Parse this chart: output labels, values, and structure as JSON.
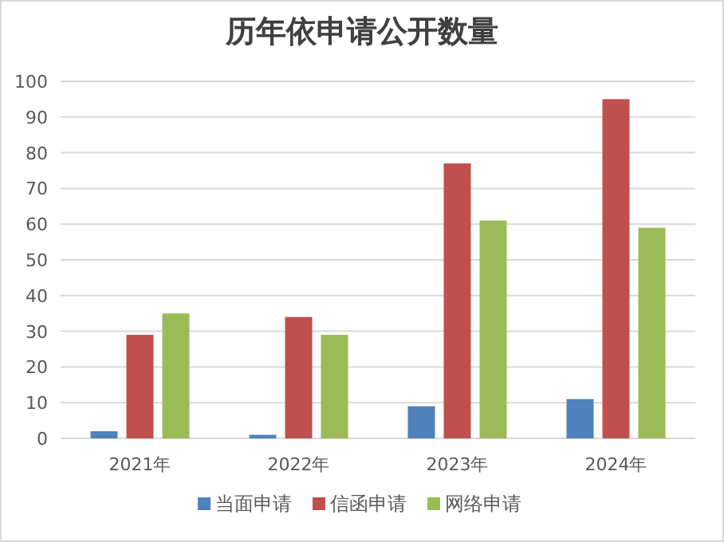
{
  "chart_data": {
    "type": "bar",
    "title": "历年依申请公开数量",
    "categories": [
      "2021年",
      "2022年",
      "2023年",
      "2024年"
    ],
    "series": [
      {
        "name": "当面申请",
        "color": "#4f81bd",
        "values": [
          2,
          1,
          9,
          11
        ]
      },
      {
        "name": "信函申请",
        "color": "#c0504d",
        "values": [
          29,
          34,
          77,
          95
        ]
      },
      {
        "name": "网络申请",
        "color": "#9bbb59",
        "values": [
          35,
          29,
          61,
          59
        ]
      }
    ],
    "ylim": [
      0,
      100
    ],
    "yticks": [
      0,
      10,
      20,
      30,
      40,
      50,
      60,
      70,
      80,
      90,
      100
    ],
    "grid": "y",
    "legend": "bottom"
  }
}
